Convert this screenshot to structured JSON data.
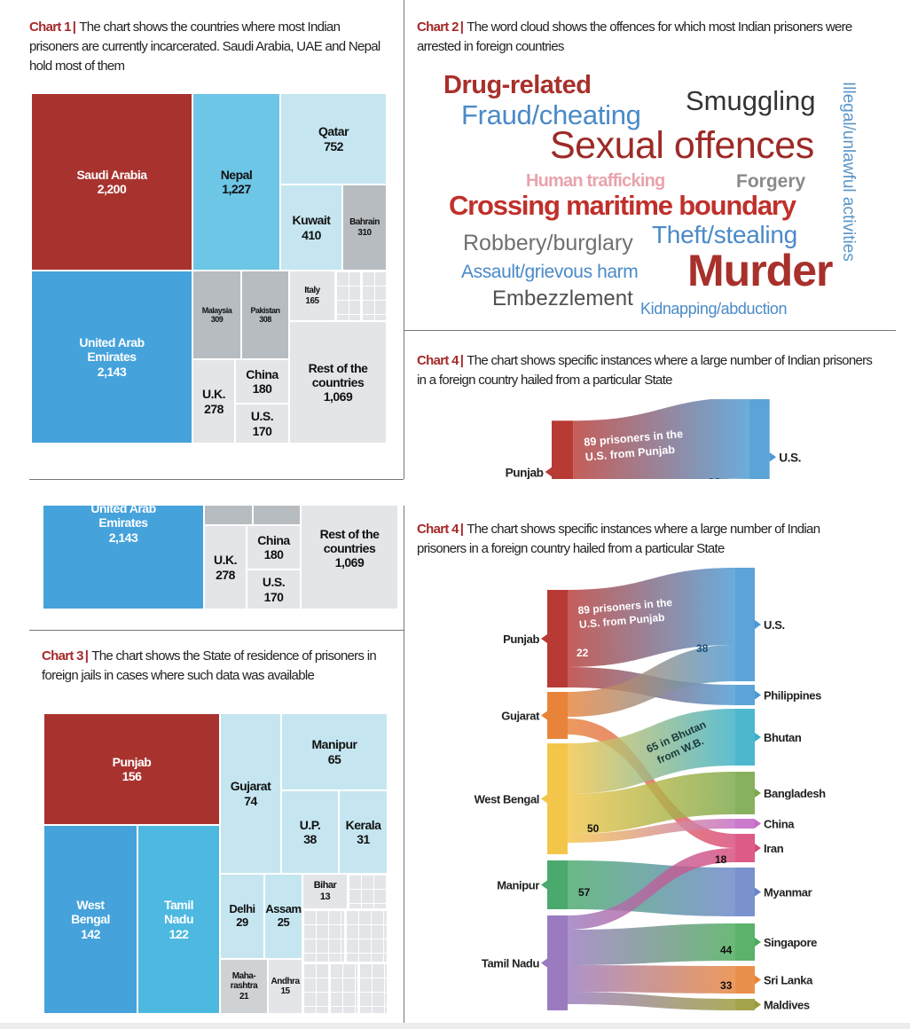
{
  "panels": {
    "chart1": {
      "tag": "Chart 1",
      "caption": "The chart shows the countries where most Indian prisoners are currently incarcerated. Saudi Arabia, UAE and Nepal hold most of them"
    },
    "chart2": {
      "tag": "Chart 2",
      "caption": "The word cloud shows the offences for which most Indian prisoners were arrested in foreign countries"
    },
    "chart3": {
      "tag": "Chart 3",
      "caption": "The chart shows the State of residence of prisoners in foreign jails in cases where such data was available"
    },
    "chart4": {
      "tag": "Chart 4",
      "caption": "The chart shows specific instances where a large number of Indian prisoners in a foreign country hailed from a particular State"
    }
  },
  "colors": {
    "accent_red": "#a8332e",
    "blue": "#45a2db",
    "light_blue": "#c5e6f1",
    "gray": "#b7bcc0",
    "light_gray": "#e3e5e8"
  },
  "chart_data": [
    {
      "type": "treemap",
      "cells": [
        {
          "label": "Saudi Arabia",
          "value": 2200
        },
        {
          "label": "United Arab Emirates",
          "value": 2143
        },
        {
          "label": "Nepal",
          "value": 1227
        },
        {
          "label": "Qatar",
          "value": 752
        },
        {
          "label": "Kuwait",
          "value": 410
        },
        {
          "label": "Bahrain",
          "value": 310
        },
        {
          "label": "Malaysia",
          "value": 309
        },
        {
          "label": "Pakistan",
          "value": 308
        },
        {
          "label": "Italy",
          "value": 165
        },
        {
          "label": "U.K.",
          "value": 278
        },
        {
          "label": "China",
          "value": 180
        },
        {
          "label": "U.S.",
          "value": 170
        },
        {
          "label": "Rest of the countries",
          "value": 1069
        }
      ]
    },
    {
      "type": "wordcloud",
      "words": [
        {
          "text": "Drug-related",
          "color": "#a8302b"
        },
        {
          "text": "Smuggling",
          "color": "#333333"
        },
        {
          "text": "Fraud/cheating",
          "color": "#4a8ac8"
        },
        {
          "text": "Sexual offences",
          "color": "#9c2a26"
        },
        {
          "text": "Human trafficking",
          "color": "#e9a3ab"
        },
        {
          "text": "Forgery",
          "color": "#8a8a8a"
        },
        {
          "text": "Crossing maritime boundary",
          "color": "#c0302b"
        },
        {
          "text": "Robbery/burglary",
          "color": "#707070"
        },
        {
          "text": "Theft/stealing",
          "color": "#4a8ac8"
        },
        {
          "text": "Assault/grievous harm",
          "color": "#4a8ac8"
        },
        {
          "text": "Murder",
          "color": "#a8302b"
        },
        {
          "text": "Embezzlement",
          "color": "#505050"
        },
        {
          "text": "Kidnapping/abduction",
          "color": "#4a8ac8"
        },
        {
          "text": "Illegal/unlawful activities",
          "color": "#5a95c8"
        }
      ]
    },
    {
      "type": "treemap",
      "cells": [
        {
          "label": "Punjab",
          "value": 156
        },
        {
          "label": "West Bengal",
          "value": 142
        },
        {
          "label": "Tamil Nadu",
          "value": 122
        },
        {
          "label": "Gujarat",
          "value": 74
        },
        {
          "label": "Manipur",
          "value": 65
        },
        {
          "label": "U.P.",
          "value": 38
        },
        {
          "label": "Kerala",
          "value": 31
        },
        {
          "label": "Delhi",
          "value": 29
        },
        {
          "label": "Assam",
          "value": 25
        },
        {
          "label": "Bihar",
          "value": 13
        },
        {
          "label": "Maha-rashtra",
          "value": 21
        },
        {
          "label": "Andhra",
          "value": 15
        }
      ]
    },
    {
      "type": "sankey",
      "sources": [
        {
          "name": "Punjab",
          "color": "#b83a35"
        },
        {
          "name": "Gujarat",
          "color": "#e8843a"
        },
        {
          "name": "West Bengal",
          "color": "#f3c64a"
        },
        {
          "name": "Manipur",
          "color": "#4aa96c"
        },
        {
          "name": "Tamil Nadu",
          "color": "#9b7bbf"
        }
      ],
      "targets": [
        {
          "name": "U.S.",
          "color": "#4a9ad4"
        },
        {
          "name": "Philippines",
          "color": "#4a9ad4"
        },
        {
          "name": "Bhutan",
          "color": "#3ab0c8"
        },
        {
          "name": "Bangladesh",
          "color": "#7aa84a"
        },
        {
          "name": "China",
          "color": "#c46cc6"
        },
        {
          "name": "Iran",
          "color": "#d94a7a"
        },
        {
          "name": "Myanmar",
          "color": "#6a85c8"
        },
        {
          "name": "Singapore",
          "color": "#4aaa5a"
        },
        {
          "name": "Sri Lanka",
          "color": "#e8843a"
        },
        {
          "name": "Maldives",
          "color": "#9a9a3a"
        }
      ],
      "flows": [
        {
          "source": "Punjab",
          "target": "U.S.",
          "value": 89
        },
        {
          "source": "Punjab",
          "target": "Philippines",
          "value": 22
        },
        {
          "source": "Gujarat",
          "target": "U.S.",
          "value": 38
        },
        {
          "source": "Gujarat",
          "target": "Iran",
          "value": null
        },
        {
          "source": "West Bengal",
          "target": "Bhutan",
          "value": 65
        },
        {
          "source": "West Bengal",
          "target": "Bangladesh",
          "value": 50
        },
        {
          "source": "West Bengal",
          "target": "China",
          "value": null
        },
        {
          "source": "Manipur",
          "target": "Myanmar",
          "value": 57
        },
        {
          "source": "Tamil Nadu",
          "target": "Iran",
          "value": 18
        },
        {
          "source": "Tamil Nadu",
          "target": "Singapore",
          "value": 44
        },
        {
          "source": "Tamil Nadu",
          "target": "Sri Lanka",
          "value": 33
        },
        {
          "source": "Tamil Nadu",
          "target": "Maldives",
          "value": null
        }
      ],
      "value_labels": [
        "22",
        "38",
        "50",
        "18",
        "57",
        "44",
        "33"
      ],
      "annotations": {
        "punjab_us_line1": "89 prisoners in the",
        "punjab_us_line2": "U.S. from Punjab",
        "wb_bhutan_line1": "65 in Bhutan",
        "wb_bhutan_line2": "from W.B."
      }
    }
  ]
}
